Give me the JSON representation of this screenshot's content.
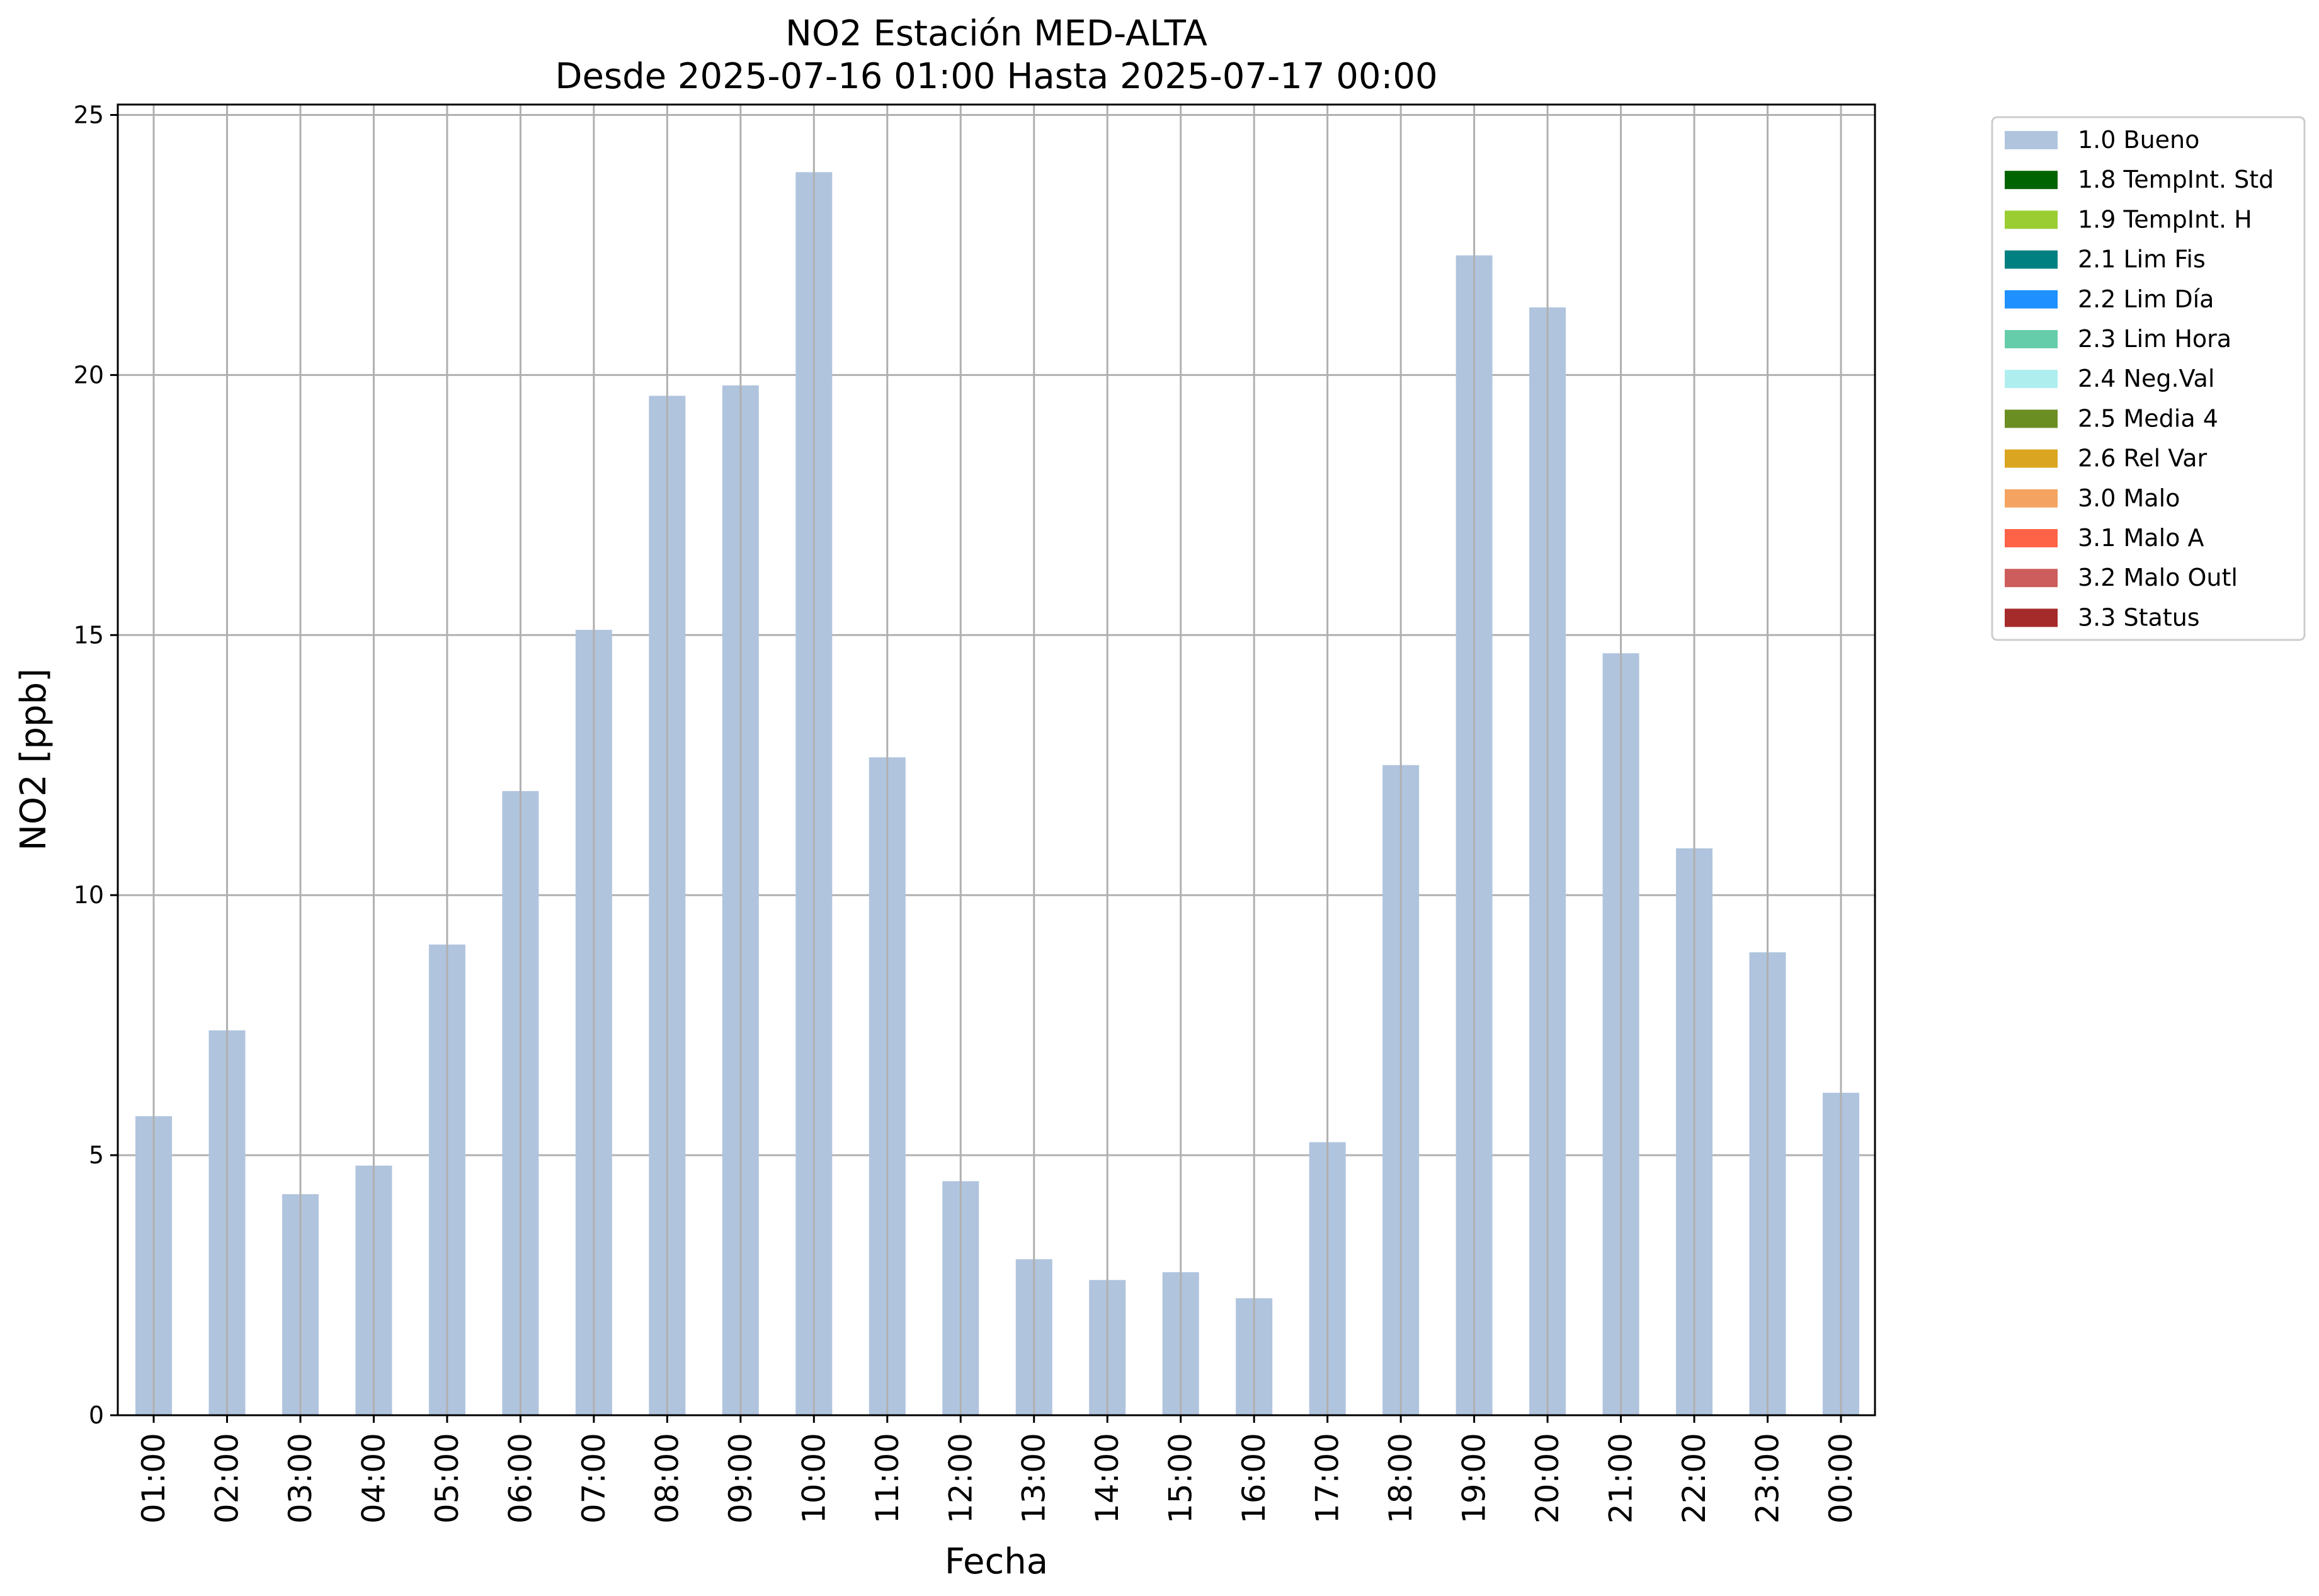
{
  "chart_data": {
    "type": "bar",
    "title": "NO2 Estación MED-ALTA",
    "subtitle": "Desde 2025-07-16 01:00 Hasta 2025-07-17 00:00",
    "xlabel": "Fecha",
    "ylabel": "NO2 [ppb]",
    "ylim": [
      0,
      25.2
    ],
    "yticks": [
      0,
      5,
      10,
      15,
      20,
      25
    ],
    "grid": true,
    "legend_position": "outside-right-top",
    "categories": [
      "01:00",
      "02:00",
      "03:00",
      "04:00",
      "05:00",
      "06:00",
      "07:00",
      "08:00",
      "09:00",
      "10:00",
      "11:00",
      "12:00",
      "13:00",
      "14:00",
      "15:00",
      "16:00",
      "17:00",
      "18:00",
      "19:00",
      "20:00",
      "21:00",
      "22:00",
      "23:00",
      "00:00"
    ],
    "series": [
      {
        "name": "1.0 Bueno",
        "color": "#b0c4de",
        "values": [
          5.75,
          7.4,
          4.25,
          4.8,
          9.05,
          12.0,
          15.1,
          19.6,
          19.8,
          23.9,
          12.65,
          4.5,
          3.0,
          2.6,
          2.75,
          2.25,
          5.25,
          12.5,
          22.3,
          21.3,
          14.65,
          10.9,
          8.9,
          6.2
        ]
      }
    ],
    "legend": [
      {
        "label": "1.0 Bueno",
        "color": "#b0c4de"
      },
      {
        "label": "1.8 TempInt. Std",
        "color": "#006400"
      },
      {
        "label": "1.9 TempInt. H",
        "color": "#9acd32"
      },
      {
        "label": "2.1 Lim Fis",
        "color": "#008080"
      },
      {
        "label": "2.2 Lim Día",
        "color": "#1e90ff"
      },
      {
        "label": "2.3 Lim Hora",
        "color": "#66cdaa"
      },
      {
        "label": "2.4 Neg.Val",
        "color": "#afeeee"
      },
      {
        "label": "2.5 Media 4",
        "color": "#6b8e23"
      },
      {
        "label": "2.6 Rel Var",
        "color": "#daa520"
      },
      {
        "label": "3.0 Malo",
        "color": "#f4a460"
      },
      {
        "label": "3.1 Malo A",
        "color": "#ff6347"
      },
      {
        "label": "3.2 Malo Outl",
        "color": "#cd5c5c"
      },
      {
        "label": "3.3 Status",
        "color": "#a52a2a"
      }
    ]
  }
}
